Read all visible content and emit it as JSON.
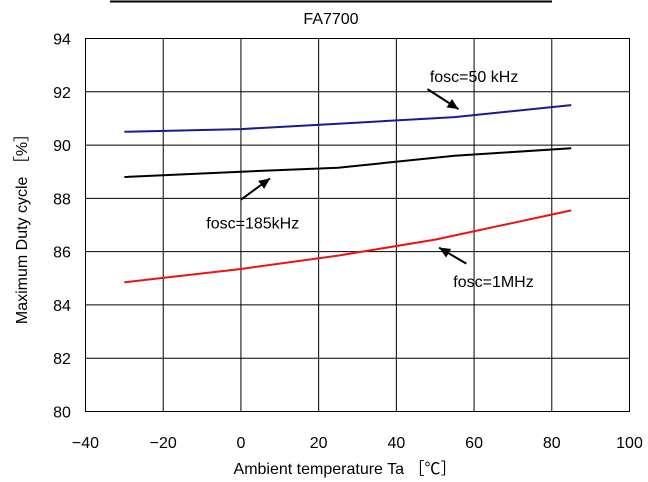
{
  "chart_data": {
    "type": "line",
    "title": "FA7700",
    "xlabel": "Ambient temperature Ta ［℃］",
    "ylabel": "Maximum Duty cycle ［%］",
    "xlim": [
      -40,
      100
    ],
    "ylim": [
      80,
      94
    ],
    "xticks": [
      -40,
      -20,
      0,
      20,
      40,
      60,
      80,
      100
    ],
    "yticks": [
      80,
      82,
      84,
      86,
      88,
      90,
      92,
      94
    ],
    "xtick_labels": [
      "−40",
      "−20",
      "0",
      "20",
      "40",
      "60",
      "80",
      "100"
    ],
    "ytick_labels": [
      "80",
      "82",
      "84",
      "86",
      "88",
      "90",
      "92",
      "94"
    ],
    "grid": true,
    "legend": "none",
    "series": [
      {
        "name": "fosc=50 kHz",
        "color": "#1a1a8c",
        "x": [
          -30,
          0,
          25,
          55,
          85
        ],
        "y": [
          90.5,
          90.6,
          90.8,
          91.05,
          91.5
        ]
      },
      {
        "name": "fosc=185kHz",
        "color": "#000000",
        "x": [
          -30,
          0,
          25,
          55,
          85
        ],
        "y": [
          88.8,
          89.0,
          89.15,
          89.6,
          89.88
        ]
      },
      {
        "name": "fosc=1MHz",
        "color": "#ee1111",
        "x": [
          -30,
          0,
          25,
          50,
          85
        ],
        "y": [
          84.85,
          85.35,
          85.85,
          86.45,
          87.55
        ]
      }
    ],
    "annotations": [
      {
        "text": "fosc=50 kHz",
        "text_x": 60,
        "text_y": 92.6,
        "anchor": "middle",
        "arrow_from": [
          48,
          92.1
        ],
        "arrow_to": [
          56,
          91.35
        ]
      },
      {
        "text": "fosc=185kHz",
        "text_x": 15,
        "text_y": 87.1,
        "anchor": "end",
        "arrow_from": [
          0,
          87.95
        ],
        "arrow_to": [
          7.5,
          88.75
        ]
      },
      {
        "text": "fosc=1MHz",
        "text_x": 65,
        "text_y": 84.9,
        "anchor": "middle",
        "arrow_from": [
          58,
          85.55
        ],
        "arrow_to": [
          51,
          86.15
        ]
      }
    ]
  }
}
